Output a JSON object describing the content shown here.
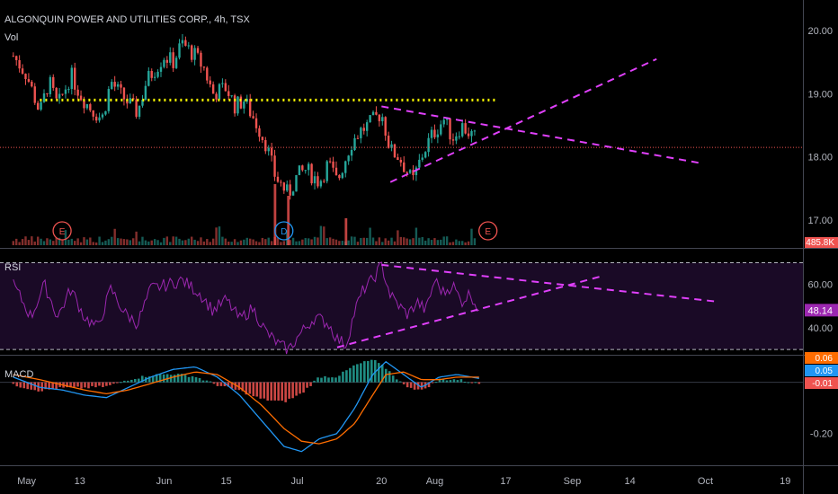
{
  "header": {
    "title": "ALGONQUIN POWER AND UTILITIES CORP., 4h, TSX",
    "vol_label": "Vol"
  },
  "panes": {
    "rsi_label": "RSI",
    "macd_label": "MACD"
  },
  "colors": {
    "up": "#26a69a",
    "down": "#ef5350",
    "trendline": "#e040fb",
    "resistance": "#ffff00",
    "rsi": "#9c27b0",
    "macd_line": "#2196f3",
    "signal_line": "#ff6d00",
    "hist_pos": "#26a69a",
    "hist_neg": "#ef5350"
  },
  "icons": {
    "earnings": "earnings-marker-icon",
    "dividend": "dividend-marker-icon"
  },
  "chart_data": [
    {
      "type": "candlestick",
      "title": "ALGONQUIN POWER AND UTILITIES CORP., 4h, TSX",
      "ylim": [
        16.7,
        20.4
      ],
      "y_ticks": [
        "20.00",
        "19.00",
        "18.00",
        "17.00"
      ],
      "x_ticks": [
        "May",
        "13",
        "Jun",
        "15",
        "Jul",
        "20",
        "Aug",
        "17",
        "Sep",
        "14",
        "Oct",
        "19"
      ],
      "x_tick_dates": [
        "2020-05-01",
        "2020-05-13",
        "2020-06-01",
        "2020-06-15",
        "2020-07-01",
        "2020-07-20",
        "2020-08-01",
        "2020-08-17",
        "2020-09-01",
        "2020-09-14",
        "2020-10-01",
        "2020-10-19"
      ],
      "last_price_line": 18.15,
      "volume_label": "485.8K",
      "close_path": [
        [
          "2020-04-28",
          19.6
        ],
        [
          "2020-05-01",
          19.3
        ],
        [
          "2020-05-04",
          18.7
        ],
        [
          "2020-05-06",
          19.2
        ],
        [
          "2020-05-08",
          18.8
        ],
        [
          "2020-05-11",
          19.3
        ],
        [
          "2020-05-13",
          19.0
        ],
        [
          "2020-05-15",
          18.8
        ],
        [
          "2020-05-18",
          18.6
        ],
        [
          "2020-05-20",
          19.2
        ],
        [
          "2020-05-22",
          19.0
        ],
        [
          "2020-05-26",
          18.7
        ],
        [
          "2020-05-28",
          19.2
        ],
        [
          "2020-06-01",
          19.6
        ],
        [
          "2020-06-03",
          19.5
        ],
        [
          "2020-06-05",
          19.8
        ],
        [
          "2020-06-08",
          19.6
        ],
        [
          "2020-06-10",
          19.4
        ],
        [
          "2020-06-12",
          19.0
        ],
        [
          "2020-06-15",
          19.1
        ],
        [
          "2020-06-17",
          18.8
        ],
        [
          "2020-06-19",
          18.9
        ],
        [
          "2020-06-22",
          18.5
        ],
        [
          "2020-06-24",
          18.2
        ],
        [
          "2020-06-26",
          17.7
        ],
        [
          "2020-06-29",
          17.4
        ],
        [
          "2020-07-01",
          17.7
        ],
        [
          "2020-07-03",
          17.8
        ],
        [
          "2020-07-06",
          17.6
        ],
        [
          "2020-07-08",
          17.9
        ],
        [
          "2020-07-10",
          17.6
        ],
        [
          "2020-07-13",
          18.2
        ],
        [
          "2020-07-15",
          18.4
        ],
        [
          "2020-07-17",
          18.5
        ],
        [
          "2020-07-20",
          18.7
        ],
        [
          "2020-07-22",
          18.1
        ],
        [
          "2020-07-24",
          18.0
        ],
        [
          "2020-07-27",
          17.6
        ],
        [
          "2020-07-29",
          18.0
        ],
        [
          "2020-07-31",
          18.3
        ],
        [
          "2020-08-03",
          18.6
        ],
        [
          "2020-08-05",
          18.3
        ],
        [
          "2020-08-07",
          18.5
        ],
        [
          "2020-08-10",
          18.3
        ]
      ],
      "earnings_markers": [
        {
          "date": "2020-05-09",
          "label": "E"
        },
        {
          "date": "2020-08-13",
          "label": "E"
        }
      ],
      "dividend_markers": [
        {
          "date": "2020-06-28",
          "label": "D"
        }
      ],
      "drawings": {
        "resistance": {
          "from": [
            "2020-05-04",
            18.9
          ],
          "to": [
            "2020-08-15",
            18.9
          ]
        },
        "upper_trend": {
          "from": [
            "2020-07-20",
            18.8
          ],
          "to": [
            "2020-09-30",
            17.9
          ]
        },
        "lower_trend": {
          "from": [
            "2020-07-22",
            17.6
          ],
          "to": [
            "2020-09-20",
            19.55
          ]
        }
      }
    },
    {
      "type": "line",
      "name": "RSI",
      "ylim": [
        28,
        76
      ],
      "y_ticks": [
        "60.00",
        "40.00"
      ],
      "current_value_label": "48.14",
      "band_levels": [
        70,
        30
      ],
      "path": [
        [
          "2020-04-28",
          60
        ],
        [
          "2020-05-02",
          45
        ],
        [
          "2020-05-05",
          60
        ],
        [
          "2020-05-08",
          45
        ],
        [
          "2020-05-11",
          58
        ],
        [
          "2020-05-14",
          45
        ],
        [
          "2020-05-17",
          40
        ],
        [
          "2020-05-20",
          58
        ],
        [
          "2020-05-23",
          47
        ],
        [
          "2020-05-26",
          42
        ],
        [
          "2020-05-29",
          58
        ],
        [
          "2020-06-02",
          60
        ],
        [
          "2020-06-05",
          62
        ],
        [
          "2020-06-09",
          56
        ],
        [
          "2020-06-12",
          48
        ],
        [
          "2020-06-15",
          53
        ],
        [
          "2020-06-18",
          44
        ],
        [
          "2020-06-21",
          49
        ],
        [
          "2020-06-24",
          38
        ],
        [
          "2020-06-27",
          32
        ],
        [
          "2020-06-29",
          30
        ],
        [
          "2020-07-02",
          38
        ],
        [
          "2020-07-05",
          45
        ],
        [
          "2020-07-08",
          42
        ],
        [
          "2020-07-10",
          35
        ],
        [
          "2020-07-12",
          32
        ],
        [
          "2020-07-14",
          48
        ],
        [
          "2020-07-16",
          58
        ],
        [
          "2020-07-18",
          62
        ],
        [
          "2020-07-20",
          69
        ],
        [
          "2020-07-22",
          55
        ],
        [
          "2020-07-24",
          50
        ],
        [
          "2020-07-26",
          46
        ],
        [
          "2020-07-28",
          52
        ],
        [
          "2020-07-30",
          48
        ],
        [
          "2020-08-01",
          62
        ],
        [
          "2020-08-03",
          56
        ],
        [
          "2020-08-05",
          60
        ],
        [
          "2020-08-07",
          52
        ],
        [
          "2020-08-09",
          56
        ],
        [
          "2020-08-11",
          48
        ]
      ],
      "drawings": {
        "upper_trend": {
          "from": [
            "2020-07-20",
            69
          ],
          "to": [
            "2020-10-04",
            52
          ]
        },
        "lower_trend": {
          "from": [
            "2020-07-10",
            31
          ],
          "to": [
            "2020-09-08",
            64
          ]
        }
      }
    },
    {
      "type": "line",
      "name": "MACD",
      "ylim": [
        -0.32,
        0.1
      ],
      "y_ticks": [
        "-0.20"
      ],
      "value_labels": [
        "0.06",
        "0.05",
        "-0.01"
      ],
      "macd": [
        [
          "2020-04-28",
          0.02
        ],
        [
          "2020-05-04",
          -0.02
        ],
        [
          "2020-05-09",
          -0.03
        ],
        [
          "2020-05-14",
          -0.05
        ],
        [
          "2020-05-19",
          -0.06
        ],
        [
          "2020-05-24",
          -0.02
        ],
        [
          "2020-05-29",
          0.02
        ],
        [
          "2020-06-03",
          0.05
        ],
        [
          "2020-06-08",
          0.06
        ],
        [
          "2020-06-13",
          0.02
        ],
        [
          "2020-06-18",
          -0.05
        ],
        [
          "2020-06-23",
          -0.15
        ],
        [
          "2020-06-28",
          -0.25
        ],
        [
          "2020-07-02",
          -0.27
        ],
        [
          "2020-07-06",
          -0.22
        ],
        [
          "2020-07-10",
          -0.2
        ],
        [
          "2020-07-14",
          -0.1
        ],
        [
          "2020-07-18",
          0.03
        ],
        [
          "2020-07-21",
          0.08
        ],
        [
          "2020-07-25",
          0.03
        ],
        [
          "2020-07-29",
          -0.02
        ],
        [
          "2020-08-02",
          0.02
        ],
        [
          "2020-08-06",
          0.03
        ],
        [
          "2020-08-11",
          0.015
        ]
      ],
      "signal": [
        [
          "2020-04-28",
          0.03
        ],
        [
          "2020-05-04",
          0.01
        ],
        [
          "2020-05-09",
          -0.01
        ],
        [
          "2020-05-14",
          -0.03
        ],
        [
          "2020-05-19",
          -0.045
        ],
        [
          "2020-05-24",
          -0.03
        ],
        [
          "2020-05-29",
          -0.005
        ],
        [
          "2020-06-03",
          0.02
        ],
        [
          "2020-06-08",
          0.04
        ],
        [
          "2020-06-13",
          0.03
        ],
        [
          "2020-06-18",
          -0.02
        ],
        [
          "2020-06-23",
          -0.09
        ],
        [
          "2020-06-28",
          -0.18
        ],
        [
          "2020-07-02",
          -0.23
        ],
        [
          "2020-07-06",
          -0.24
        ],
        [
          "2020-07-10",
          -0.22
        ],
        [
          "2020-07-14",
          -0.16
        ],
        [
          "2020-07-18",
          -0.05
        ],
        [
          "2020-07-21",
          0.03
        ],
        [
          "2020-07-25",
          0.04
        ],
        [
          "2020-07-29",
          0.01
        ],
        [
          "2020-08-02",
          0.01
        ],
        [
          "2020-08-06",
          0.02
        ],
        [
          "2020-08-11",
          0.02
        ]
      ]
    }
  ]
}
